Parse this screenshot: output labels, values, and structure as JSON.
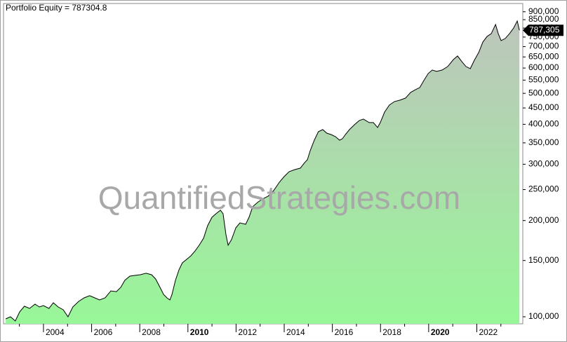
{
  "chart_data": {
    "type": "area",
    "title": "Portfolio Equity = 787304.8",
    "watermark": "QuantifiedStrategies.com",
    "log_scale": true,
    "grid": false,
    "line_color": "#000000",
    "fill_top": "#bdc5bc",
    "fill_bottom": "#98f798",
    "x": [
      2002.43,
      2002.63,
      2002.83,
      2003.01,
      2003.21,
      2003.42,
      2003.65,
      2003.83,
      2004.0,
      2004.23,
      2004.41,
      2004.61,
      2004.82,
      2005.02,
      2005.22,
      2005.46,
      2005.69,
      2005.92,
      2006.13,
      2006.33,
      2006.56,
      2006.8,
      2007.03,
      2007.21,
      2007.38,
      2007.59,
      2007.79,
      2008.02,
      2008.26,
      2008.49,
      2008.66,
      2008.84,
      2008.99,
      2009.13,
      2009.25,
      2009.34,
      2009.48,
      2009.63,
      2009.77,
      2009.95,
      2010.12,
      2010.3,
      2010.47,
      2010.65,
      2010.82,
      2011.0,
      2011.17,
      2011.35,
      2011.46,
      2011.58,
      2011.67,
      2011.81,
      2011.99,
      2012.16,
      2012.4,
      2012.54,
      2012.69,
      2012.92,
      2013.15,
      2013.33,
      2013.56,
      2013.8,
      2014.0,
      2014.2,
      2014.44,
      2014.67,
      2014.85,
      2014.96,
      2015.08,
      2015.25,
      2015.42,
      2015.6,
      2015.77,
      2015.95,
      2016.13,
      2016.3,
      2016.42,
      2016.54,
      2016.71,
      2016.92,
      2017.12,
      2017.29,
      2017.53,
      2017.7,
      2017.88,
      2017.99,
      2018.17,
      2018.37,
      2018.58,
      2018.81,
      2019.04,
      2019.25,
      2019.45,
      2019.63,
      2019.8,
      2019.98,
      2020.15,
      2020.33,
      2020.56,
      2020.79,
      2021.03,
      2021.2,
      2021.38,
      2021.55,
      2021.73,
      2021.9,
      2022.08,
      2022.25,
      2022.43,
      2022.6,
      2022.78,
      2022.89,
      2023.01,
      2023.18,
      2023.36,
      2023.53,
      2023.68,
      2023.77
    ],
    "values": [
      98500,
      100000,
      97000,
      103600,
      107900,
      106200,
      109500,
      107300,
      108400,
      106200,
      110600,
      107300,
      105200,
      100000,
      107300,
      111700,
      114600,
      116400,
      114600,
      112900,
      114600,
      120500,
      119900,
      123600,
      130000,
      134000,
      134700,
      135400,
      136800,
      135400,
      131300,
      123600,
      117500,
      114600,
      112900,
      117500,
      130000,
      140300,
      147500,
      151300,
      155100,
      160800,
      167400,
      176100,
      192800,
      204800,
      210100,
      215400,
      210100,
      180600,
      167400,
      174300,
      189900,
      196700,
      194700,
      204800,
      221000,
      228900,
      234700,
      238300,
      248100,
      263700,
      274600,
      284400,
      288700,
      291700,
      303700,
      309800,
      331000,
      356900,
      379300,
      385100,
      375400,
      371600,
      366000,
      356900,
      360600,
      371600,
      385100,
      399000,
      411200,
      415400,
      405000,
      405000,
      390900,
      405000,
      436900,
      459600,
      471300,
      476000,
      483300,
      503200,
      513400,
      521300,
      548300,
      576800,
      591500,
      585500,
      591500,
      606700,
      638100,
      654400,
      628500,
      606700,
      597500,
      634900,
      671100,
      723700,
      753700,
      769100,
      821200,
      769100,
      731100,
      742300,
      769100,
      800700,
      842200,
      787304.8
    ],
    "last_label": {
      "value": 787304.8,
      "label": "787,305"
    },
    "xlim": [
      2002.34,
      2023.91
    ],
    "xticks": [
      2004,
      2006,
      2008,
      2010,
      2012,
      2014,
      2016,
      2018,
      2020,
      2022
    ],
    "minor_xticks": [
      2003,
      2005,
      2007,
      2009,
      2011,
      2013,
      2015,
      2017,
      2019,
      2021,
      2023
    ],
    "ylim": [
      95080,
      955000
    ],
    "yticks": [
      {
        "value": 100000,
        "label": "100,000"
      },
      {
        "value": 150000,
        "label": "150,000"
      },
      {
        "value": 200000,
        "label": "200,000"
      },
      {
        "value": 250000,
        "label": "250,000"
      },
      {
        "value": 300000,
        "label": "300,000"
      },
      {
        "value": 350000,
        "label": "350,000"
      },
      {
        "value": 400000,
        "label": "400,000"
      },
      {
        "value": 450000,
        "label": "450,000"
      },
      {
        "value": 500000,
        "label": "500,000"
      },
      {
        "value": 550000,
        "label": "550,000"
      },
      {
        "value": 600000,
        "label": "600,000"
      },
      {
        "value": 650000,
        "label": "650,000"
      },
      {
        "value": 700000,
        "label": "700,000"
      },
      {
        "value": 750000,
        "label": "750,000"
      },
      {
        "value": 800000,
        "label": "800,000"
      },
      {
        "value": 850000,
        "label": "850,000"
      },
      {
        "value": 900000,
        "label": "900,000"
      }
    ]
  }
}
